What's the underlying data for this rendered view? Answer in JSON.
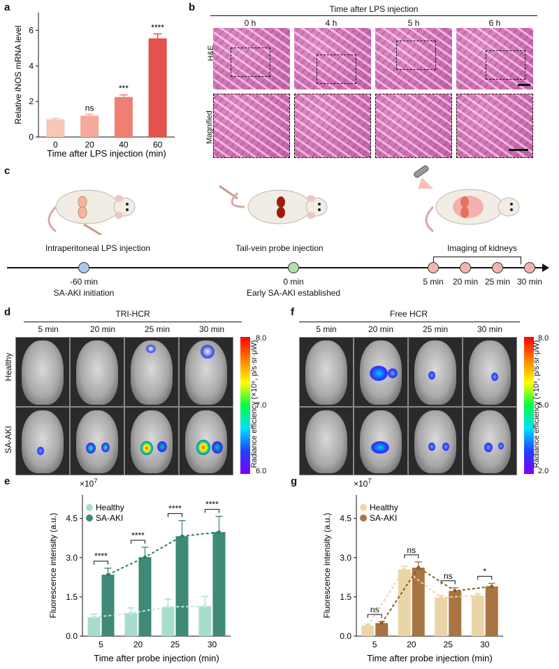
{
  "panels": {
    "a": "a",
    "b": "b",
    "c": "c",
    "d": "d",
    "e": "e",
    "f": "f",
    "g": "g"
  },
  "chart_data": [
    {
      "id": "a",
      "type": "bar",
      "categories": [
        "0",
        "20",
        "40",
        "60"
      ],
      "values": [
        1.0,
        1.2,
        2.25,
        5.55
      ],
      "errors": [
        0.05,
        0.08,
        0.12,
        0.25
      ],
      "annotations": [
        "",
        "ns",
        "***",
        "****"
      ],
      "xlabel": "Time after LPS injection (min)",
      "ylabel": "Relative iNOS mRNA level",
      "ylim": [
        0,
        7
      ],
      "yticks": [
        "0",
        "2",
        "4",
        "6"
      ],
      "colors": [
        "#f8c8b4",
        "#f4a99a",
        "#ee7f72",
        "#e4524c"
      ]
    },
    {
      "id": "e",
      "type": "bar",
      "categories": [
        "5",
        "20",
        "25",
        "30"
      ],
      "series": [
        {
          "name": "Healthy",
          "values": [
            0.72,
            0.88,
            1.12,
            1.14
          ],
          "errors": [
            0.12,
            0.2,
            0.3,
            0.38
          ],
          "color": "#a8dccd"
        },
        {
          "name": "SA-AKI",
          "values": [
            2.35,
            3.02,
            3.82,
            3.98
          ],
          "errors": [
            0.25,
            0.38,
            0.6,
            0.6
          ],
          "color": "#3e8a76"
        }
      ],
      "annotations": [
        "****",
        "****",
        "****",
        "****"
      ],
      "xlabel": "Time after probe injection (min)",
      "ylabel": "Fluorescence intensity (a.u.)",
      "multiplier": "×10",
      "multiplier_exp": "7",
      "ylim": [
        0,
        5.4
      ],
      "yticks": [
        "0.0",
        "1.5",
        "3.0",
        "4.5"
      ]
    },
    {
      "id": "g",
      "type": "bar",
      "categories": [
        "5",
        "20",
        "25",
        "30"
      ],
      "series": [
        {
          "name": "Healthy",
          "values": [
            0.4,
            2.55,
            1.48,
            1.55
          ],
          "errors": [
            0.06,
            0.12,
            0.08,
            0.08
          ],
          "color": "#ead5a8"
        },
        {
          "name": "SA-AKI",
          "values": [
            0.5,
            2.62,
            1.73,
            1.9
          ],
          "errors": [
            0.06,
            0.22,
            0.12,
            0.12
          ],
          "color": "#a87444"
        }
      ],
      "annotations": [
        "ns",
        "ns",
        "ns",
        "*"
      ],
      "xlabel": "Time after probe injection (min)",
      "ylabel": "Fluorescence intensity (a.u.)",
      "multiplier": "×10",
      "multiplier_exp": "7",
      "ylim": [
        0,
        5.4
      ],
      "yticks": [
        "0.0",
        "1.5",
        "3.0",
        "4.5"
      ]
    }
  ],
  "panel_b": {
    "title": "Time after LPS injection",
    "times": [
      "0 h",
      "4 h",
      "5 h",
      "6 h"
    ],
    "rows": [
      "H&E",
      "Magnified"
    ]
  },
  "panel_c": {
    "labels": [
      "Intraperitoneal LPS injection",
      "Tail-vein probe injection",
      "Imaging of kidneys"
    ],
    "points": [
      {
        "time": "-60 min",
        "desc": "SA-AKI initiation",
        "color": "#a9c9ec"
      },
      {
        "time": "0 min",
        "desc": "Early SA-AKI established",
        "color": "#b7dcae"
      },
      {
        "time": "5 min",
        "desc": "",
        "color": "#f4b4aa"
      },
      {
        "time": "20 min",
        "desc": "",
        "color": "#f4b4aa"
      },
      {
        "time": "25 min",
        "desc": "",
        "color": "#f4b4aa"
      },
      {
        "time": "30 min",
        "desc": "",
        "color": "#f4b4aa"
      }
    ]
  },
  "panel_d": {
    "title": "TRI-HCR",
    "times": [
      "5 min",
      "20 min",
      "25 min",
      "30 min"
    ],
    "rows": [
      "Healthy",
      "SA-AKI"
    ],
    "colorbar": {
      "label": "Radiance efficiency (×10⁶, p/s·sr·μW)",
      "max": "8.0",
      "mid": "7.0",
      "min": "6.0"
    }
  },
  "panel_f": {
    "title": "Free HCR",
    "times": [
      "5 min",
      "20 min",
      "25 min",
      "30 min"
    ],
    "colorbar": {
      "label": "Radiance efficiency (×10⁶, p/s·sr·μW)",
      "max": "8.0",
      "mid": "5.0",
      "min": "2.0"
    }
  }
}
